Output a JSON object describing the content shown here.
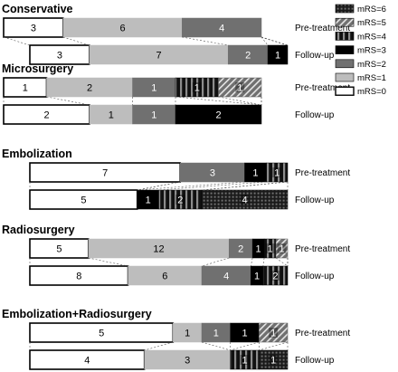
{
  "chart_data": {
    "type": "bar",
    "orientation": "horizontal-stacked-100",
    "categories_order": [
      "mRS=0",
      "mRS=1",
      "mRS=2",
      "mRS=3",
      "mRS=4",
      "mRS=5",
      "mRS=6"
    ],
    "legend": {
      "placement": "right",
      "entries": [
        {
          "label": "mRS=6",
          "pattern": "grid-dark"
        },
        {
          "label": "mRS=5",
          "pattern": "hatch-diagonal"
        },
        {
          "label": "mRS=4",
          "pattern": "stripes-vertical"
        },
        {
          "label": "mRS=3",
          "pattern": "solid-black"
        },
        {
          "label": "mRS=2",
          "pattern": "solid-dark-gray"
        },
        {
          "label": "mRS=1",
          "pattern": "solid-light-gray"
        },
        {
          "label": "mRS=0",
          "pattern": "white"
        }
      ]
    },
    "groups": [
      {
        "title": "Conservative",
        "rows": [
          {
            "label": "Pre-treatment",
            "segments": [
              {
                "category": "mRS=0",
                "value": 3
              },
              {
                "category": "mRS=1",
                "value": 6
              },
              {
                "category": "mRS=2",
                "value": 4
              }
            ]
          },
          {
            "label": "Follow-up",
            "segments": [
              {
                "category": "mRS=0",
                "value": 3
              },
              {
                "category": "mRS=1",
                "value": 7
              },
              {
                "category": "mRS=2",
                "value": 2
              },
              {
                "category": "mRS=3",
                "value": 1
              }
            ]
          }
        ]
      },
      {
        "title": "Microsurgery",
        "rows": [
          {
            "label": "Pre-treatment",
            "segments": [
              {
                "category": "mRS=0",
                "value": 1
              },
              {
                "category": "mRS=1",
                "value": 2
              },
              {
                "category": "mRS=2",
                "value": 1
              },
              {
                "category": "mRS=4",
                "value": 1
              },
              {
                "category": "mRS=5",
                "value": 1
              }
            ]
          },
          {
            "label": "Follow-up",
            "segments": [
              {
                "category": "mRS=0",
                "value": 2
              },
              {
                "category": "mRS=1",
                "value": 1
              },
              {
                "category": "mRS=2",
                "value": 1
              },
              {
                "category": "mRS=3",
                "value": 2
              }
            ]
          }
        ]
      },
      {
        "title": "Embolization",
        "rows": [
          {
            "label": "Pre-treatment",
            "segments": [
              {
                "category": "mRS=0",
                "value": 7
              },
              {
                "category": "mRS=2",
                "value": 3
              },
              {
                "category": "mRS=3",
                "value": 1
              },
              {
                "category": "mRS=4",
                "value": 1
              }
            ]
          },
          {
            "label": "Follow-up",
            "segments": [
              {
                "category": "mRS=0",
                "value": 5
              },
              {
                "category": "mRS=3",
                "value": 1
              },
              {
                "category": "mRS=4",
                "value": 2
              },
              {
                "category": "mRS=6",
                "value": 4
              }
            ]
          }
        ]
      },
      {
        "title": "Radiosurgery",
        "rows": [
          {
            "label": "Pre-treatment",
            "segments": [
              {
                "category": "mRS=0",
                "value": 5
              },
              {
                "category": "mRS=1",
                "value": 12
              },
              {
                "category": "mRS=2",
                "value": 2
              },
              {
                "category": "mRS=3",
                "value": 1
              },
              {
                "category": "mRS=4",
                "value": 1
              },
              {
                "category": "mRS=5",
                "value": 1
              }
            ]
          },
          {
            "label": "Follow-up",
            "segments": [
              {
                "category": "mRS=0",
                "value": 8
              },
              {
                "category": "mRS=1",
                "value": 6
              },
              {
                "category": "mRS=2",
                "value": 4
              },
              {
                "category": "mRS=3",
                "value": 1
              },
              {
                "category": "mRS=4",
                "value": 2
              }
            ]
          }
        ]
      },
      {
        "title": "Embolization+Radiosurgery",
        "rows": [
          {
            "label": "Pre-treatment",
            "segments": [
              {
                "category": "mRS=0",
                "value": 5
              },
              {
                "category": "mRS=1",
                "value": 1
              },
              {
                "category": "mRS=2",
                "value": 1
              },
              {
                "category": "mRS=3",
                "value": 1
              },
              {
                "category": "mRS=5",
                "value": 1
              }
            ]
          },
          {
            "label": "Follow-up",
            "segments": [
              {
                "category": "mRS=0",
                "value": 4
              },
              {
                "category": "mRS=1",
                "value": 3
              },
              {
                "category": "mRS=4",
                "value": 1
              },
              {
                "category": "mRS=6",
                "value": 1
              }
            ]
          }
        ]
      }
    ]
  }
}
